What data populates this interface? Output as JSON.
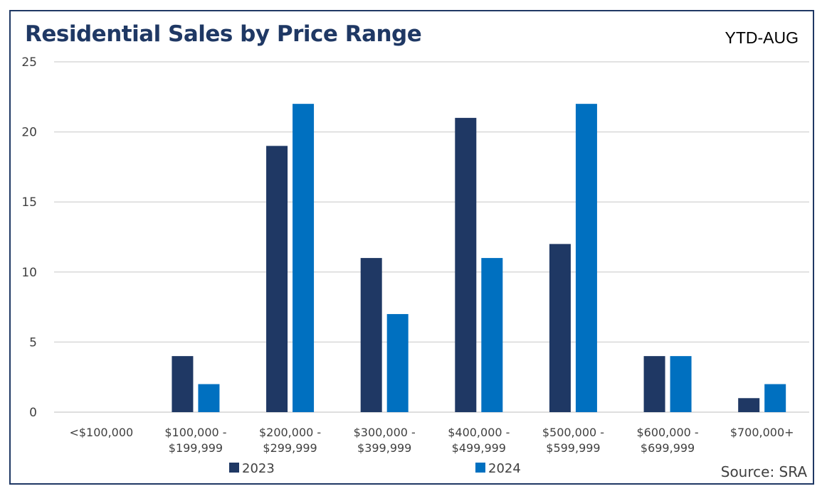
{
  "header": {
    "title": "Residential Sales by Price Range",
    "period": "YTD-AUG"
  },
  "footer": {
    "source": "Source: SRA"
  },
  "colors": {
    "series_2023": "#1f3864",
    "series_2024": "#0070c0",
    "grid": "#d9d9d9",
    "frame": "#1f3864"
  },
  "chart_data": {
    "type": "bar",
    "title": "Residential Sales by Price Range",
    "subtitle": "YTD-AUG",
    "categories": [
      [
        "<$100,000"
      ],
      [
        "$100,000 -",
        "$199,999"
      ],
      [
        "$200,000 -",
        "$299,999"
      ],
      [
        "$300,000 -",
        "$399,999"
      ],
      [
        "$400,000 -",
        "$499,999"
      ],
      [
        "$500,000 -",
        "$599,999"
      ],
      [
        "$600,000 -",
        "$699,999"
      ],
      [
        "$700,000+"
      ]
    ],
    "series": [
      {
        "name": "2023",
        "values": [
          0,
          4,
          19,
          11,
          21,
          12,
          4,
          1
        ]
      },
      {
        "name": "2024",
        "values": [
          0,
          2,
          22,
          7,
          11,
          22,
          4,
          2
        ]
      }
    ],
    "ylim": [
      0,
      25
    ],
    "yticks": [
      0,
      5,
      10,
      15,
      20,
      25
    ],
    "grid": true,
    "legend_position": "bottom"
  }
}
